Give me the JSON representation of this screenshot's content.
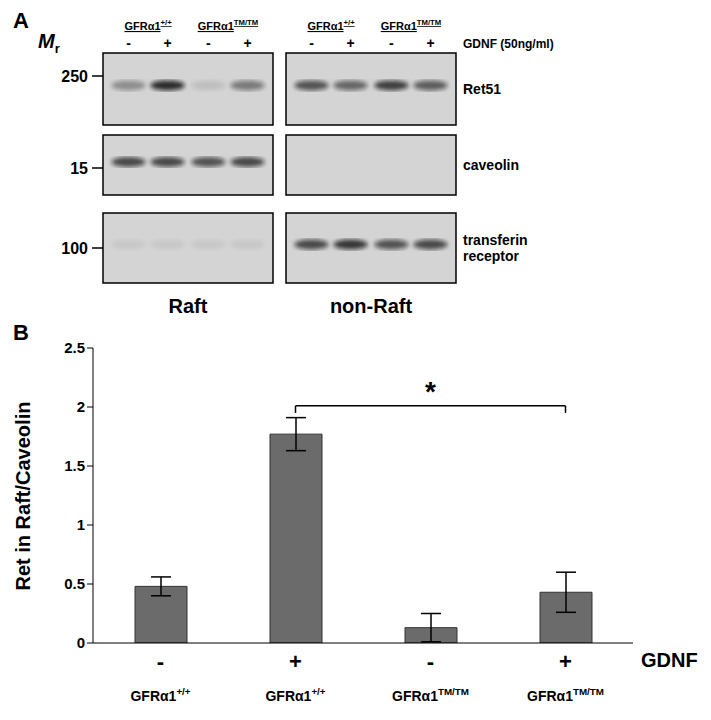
{
  "panel_a": {
    "label": "A",
    "mr_label": "Mr",
    "genotypes": [
      "GFRα1+/+",
      "GFRα1TM/TM"
    ],
    "gdnf": [
      "-",
      "+",
      "-",
      "+"
    ],
    "treatment": "GDNF (50ng/ml)",
    "blots": [
      {
        "name": "Ret51",
        "marker": 250
      },
      {
        "name": "caveolin",
        "marker": 15
      },
      {
        "name": "transferin receptor",
        "marker": 100
      }
    ],
    "fractions": [
      "Raft",
      "non-Raft"
    ]
  },
  "chart_data": {
    "type": "bar",
    "title": "B",
    "y_label": "Ret in Raft/Caveolin",
    "x_label": "GDNF",
    "categories": [
      "GFRα1+/+",
      "GFRα1+/+",
      "GFRα1TM/TM",
      "GFRα1TM/TM"
    ],
    "gdnf": [
      "-",
      "+",
      "-",
      "+"
    ],
    "values": [
      0.48,
      1.77,
      0.13,
      0.43
    ],
    "errors": [
      0.08,
      0.14,
      0.12,
      0.17
    ],
    "color": "#6b6b6b",
    "ylim": [
      0,
      2.5
    ],
    "yticks": [
      0,
      0.5,
      1,
      1.5,
      2,
      2.5
    ],
    "grid": false,
    "significance": [
      {
        "between": [
          1,
          3
        ],
        "label": "*"
      }
    ]
  }
}
